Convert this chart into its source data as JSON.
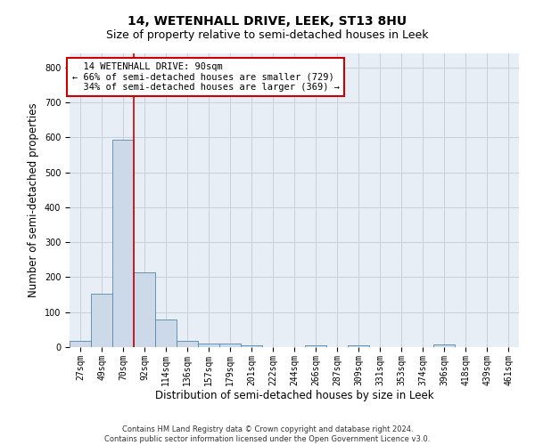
{
  "title": "14, WETENHALL DRIVE, LEEK, ST13 8HU",
  "subtitle": "Size of property relative to semi-detached houses in Leek",
  "xlabel": "Distribution of semi-detached houses by size in Leek",
  "ylabel": "Number of semi-detached properties",
  "footer_line1": "Contains HM Land Registry data © Crown copyright and database right 2024.",
  "footer_line2": "Contains public sector information licensed under the Open Government Licence v3.0.",
  "categories": [
    "27sqm",
    "49sqm",
    "70sqm",
    "92sqm",
    "114sqm",
    "136sqm",
    "157sqm",
    "179sqm",
    "201sqm",
    "222sqm",
    "244sqm",
    "266sqm",
    "287sqm",
    "309sqm",
    "331sqm",
    "353sqm",
    "374sqm",
    "396sqm",
    "418sqm",
    "439sqm",
    "461sqm"
  ],
  "values": [
    18,
    152,
    593,
    215,
    80,
    18,
    10,
    9,
    6,
    0,
    0,
    5,
    0,
    6,
    0,
    0,
    0,
    7,
    0,
    0,
    0
  ],
  "bar_color": "#ccd9e8",
  "bar_edge_color": "#5588aa",
  "highlight_index": 3,
  "property_size": "90sqm",
  "property_name": "14 WETENHALL DRIVE",
  "pct_smaller": 66,
  "count_smaller": 729,
  "pct_larger": 34,
  "count_larger": 369,
  "annotation_box_color": "#cc0000",
  "vline_color": "#cc0000",
  "ylim": [
    0,
    840
  ],
  "yticks": [
    0,
    100,
    200,
    300,
    400,
    500,
    600,
    700,
    800
  ],
  "grid_color": "#c8d0dc",
  "bg_color": "#e8eef5",
  "title_fontsize": 10,
  "subtitle_fontsize": 9,
  "axis_label_fontsize": 8.5,
  "tick_fontsize": 7,
  "annotation_fontsize": 7.5
}
